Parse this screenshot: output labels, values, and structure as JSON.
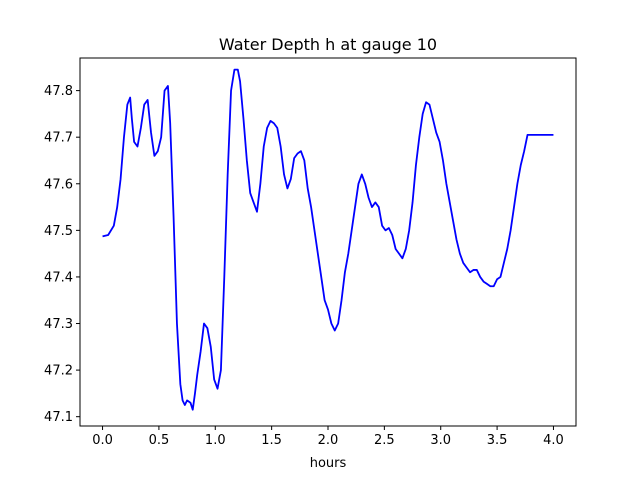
{
  "chart_data": {
    "type": "line",
    "title": "Water Depth h at gauge 10",
    "xlabel": "hours",
    "ylabel": "",
    "xlim": [
      -0.2,
      4.2
    ],
    "ylim": [
      47.08,
      47.87
    ],
    "xticks": [
      0.0,
      0.5,
      1.0,
      1.5,
      2.0,
      2.5,
      3.0,
      3.5,
      4.0
    ],
    "xtick_labels": [
      "0.0",
      "0.5",
      "1.0",
      "1.5",
      "2.0",
      "2.5",
      "3.0",
      "3.5",
      "4.0"
    ],
    "yticks": [
      47.1,
      47.2,
      47.3,
      47.4,
      47.5,
      47.6,
      47.7,
      47.8
    ],
    "ytick_labels": [
      "47.1",
      "47.2",
      "47.3",
      "47.4",
      "47.5",
      "47.6",
      "47.7",
      "47.8"
    ],
    "grid": false,
    "series": [
      {
        "color": "#0000ff",
        "x": [
          0.0,
          0.05,
          0.1,
          0.13,
          0.16,
          0.19,
          0.22,
          0.245,
          0.26,
          0.28,
          0.31,
          0.34,
          0.37,
          0.4,
          0.43,
          0.46,
          0.49,
          0.52,
          0.55,
          0.58,
          0.6,
          0.63,
          0.66,
          0.69,
          0.71,
          0.73,
          0.75,
          0.78,
          0.8,
          0.82,
          0.84,
          0.87,
          0.9,
          0.93,
          0.96,
          0.99,
          1.02,
          1.05,
          1.08,
          1.11,
          1.14,
          1.17,
          1.2,
          1.22,
          1.25,
          1.28,
          1.31,
          1.34,
          1.37,
          1.4,
          1.43,
          1.46,
          1.49,
          1.52,
          1.55,
          1.58,
          1.61,
          1.64,
          1.67,
          1.7,
          1.73,
          1.76,
          1.79,
          1.82,
          1.85,
          1.88,
          1.91,
          1.94,
          1.97,
          2.0,
          2.03,
          2.06,
          2.09,
          2.12,
          2.15,
          2.18,
          2.21,
          2.24,
          2.27,
          2.3,
          2.33,
          2.36,
          2.39,
          2.42,
          2.45,
          2.48,
          2.51,
          2.54,
          2.57,
          2.6,
          2.63,
          2.66,
          2.69,
          2.72,
          2.75,
          2.78,
          2.81,
          2.84,
          2.87,
          2.9,
          2.93,
          2.96,
          2.99,
          3.02,
          3.05,
          3.08,
          3.11,
          3.14,
          3.17,
          3.2,
          3.23,
          3.26,
          3.29,
          3.32,
          3.35,
          3.38,
          3.41,
          3.44,
          3.47,
          3.5,
          3.53,
          3.56,
          3.59,
          3.62,
          3.65,
          3.68,
          3.71,
          3.74,
          3.77,
          3.8,
          3.83,
          3.86,
          3.89,
          3.92,
          3.95,
          3.98,
          4.0
        ],
        "y": [
          47.487,
          47.49,
          47.51,
          47.55,
          47.61,
          47.7,
          47.77,
          47.785,
          47.74,
          47.69,
          47.68,
          47.72,
          47.77,
          47.78,
          47.71,
          47.66,
          47.67,
          47.7,
          47.8,
          47.81,
          47.73,
          47.53,
          47.3,
          47.17,
          47.135,
          47.125,
          47.135,
          47.13,
          47.115,
          47.15,
          47.19,
          47.24,
          47.3,
          47.29,
          47.25,
          47.18,
          47.16,
          47.2,
          47.4,
          47.62,
          47.8,
          47.845,
          47.845,
          47.82,
          47.74,
          47.65,
          47.58,
          47.56,
          47.54,
          47.6,
          47.68,
          47.72,
          47.735,
          47.73,
          47.72,
          47.68,
          47.62,
          47.59,
          47.61,
          47.655,
          47.665,
          47.67,
          47.65,
          47.59,
          47.55,
          47.5,
          47.45,
          47.4,
          47.35,
          47.33,
          47.3,
          47.285,
          47.3,
          47.35,
          47.41,
          47.45,
          47.5,
          47.55,
          47.6,
          47.62,
          47.6,
          47.57,
          47.55,
          47.56,
          47.55,
          47.51,
          47.5,
          47.505,
          47.49,
          47.46,
          47.45,
          47.44,
          47.46,
          47.5,
          47.56,
          47.64,
          47.7,
          47.75,
          47.775,
          47.77,
          47.74,
          47.71,
          47.69,
          47.65,
          47.6,
          47.56,
          47.52,
          47.48,
          47.45,
          47.43,
          47.42,
          47.41,
          47.415,
          47.415,
          47.4,
          47.39,
          47.385,
          47.38,
          47.38,
          47.395,
          47.4,
          47.43,
          47.46,
          47.5,
          47.55,
          47.6,
          47.64,
          47.67,
          47.705,
          47.705,
          47.705,
          47.705,
          47.705,
          47.705,
          47.705,
          47.705,
          47.705
        ]
      }
    ]
  }
}
